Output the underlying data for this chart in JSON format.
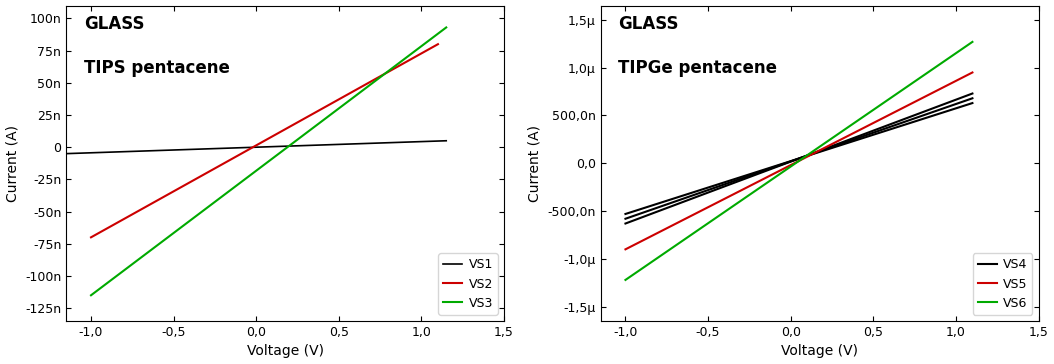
{
  "plot1": {
    "title_line1": "GLASS",
    "title_line2": "TIPS pentacene",
    "xlabel": "Voltage (V)",
    "ylabel": "Current (A)",
    "xlim": [
      -1.15,
      1.5
    ],
    "ylim": [
      -1.35e-07,
      1.1e-07
    ],
    "xticks": [
      -1.0,
      -0.5,
      0.0,
      0.5,
      1.0,
      1.5
    ],
    "xtick_labels": [
      "-1,0",
      "-0,5",
      "0,0",
      "0,5",
      "1,0",
      "1,5"
    ],
    "yticks": [
      -1.25e-07,
      -1e-07,
      -7.5e-08,
      -5e-08,
      -2.5e-08,
      0.0,
      2.5e-08,
      5e-08,
      7.5e-08,
      1e-07
    ],
    "ytick_labels": [
      "-125n",
      "-100n",
      "-75n",
      "-50n",
      "-25n",
      "0",
      "25n",
      "50n",
      "75n",
      "100n"
    ],
    "series": [
      {
        "label": "VS1",
        "color": "#000000",
        "x": [
          -1.15,
          1.15
        ],
        "y": [
          -5e-09,
          5e-09
        ],
        "lw": 1.2
      },
      {
        "label": "VS2",
        "color": "#cc0000",
        "x": [
          -1.0,
          1.1
        ],
        "y": [
          -7e-08,
          8e-08
        ],
        "lw": 1.5
      },
      {
        "label": "VS3",
        "color": "#00aa00",
        "x": [
          -1.0,
          1.15
        ],
        "y": [
          -1.15e-07,
          9.3e-08
        ],
        "lw": 1.5
      }
    ],
    "legend_loc": "lower right"
  },
  "plot2": {
    "title_line1": "GLASS",
    "title_line2": "TIPGe pentacene",
    "xlabel": "Voltage (V)",
    "ylabel": "Current (A)",
    "xlim": [
      -1.15,
      1.5
    ],
    "ylim": [
      -1.65e-06,
      1.65e-06
    ],
    "xticks": [
      -1.0,
      -0.5,
      0.0,
      0.5,
      1.0,
      1.5
    ],
    "xtick_labels": [
      "-1,0",
      "-0,5",
      "0,0",
      "0,5",
      "1,0",
      "1,5"
    ],
    "yticks": [
      -1.5e-06,
      -1e-06,
      -5e-07,
      0.0,
      5e-07,
      1e-06,
      1.5e-06
    ],
    "ytick_labels": [
      "-1,5μ",
      "-1,0μ",
      "-500,0n",
      "0,0",
      "500,0n",
      "1,0μ",
      "1,5μ"
    ],
    "black_lines": [
      {
        "x": [
          -1.0,
          1.1
        ],
        "y": [
          -6.3e-07,
          7.3e-07
        ]
      },
      {
        "x": [
          -1.0,
          1.1
        ],
        "y": [
          -5.8e-07,
          6.8e-07
        ]
      },
      {
        "x": [
          -1.0,
          1.1
        ],
        "y": [
          -5.3e-07,
          6.3e-07
        ]
      }
    ],
    "series": [
      {
        "label": "VS5",
        "color": "#cc0000",
        "x": [
          -1.0,
          1.1
        ],
        "y": [
          -9e-07,
          9.5e-07
        ],
        "lw": 1.5
      },
      {
        "label": "VS6",
        "color": "#00aa00",
        "x": [
          -1.0,
          1.1
        ],
        "y": [
          -1.22e-06,
          1.27e-06
        ],
        "lw": 1.5
      }
    ],
    "legend_loc": "lower right"
  }
}
